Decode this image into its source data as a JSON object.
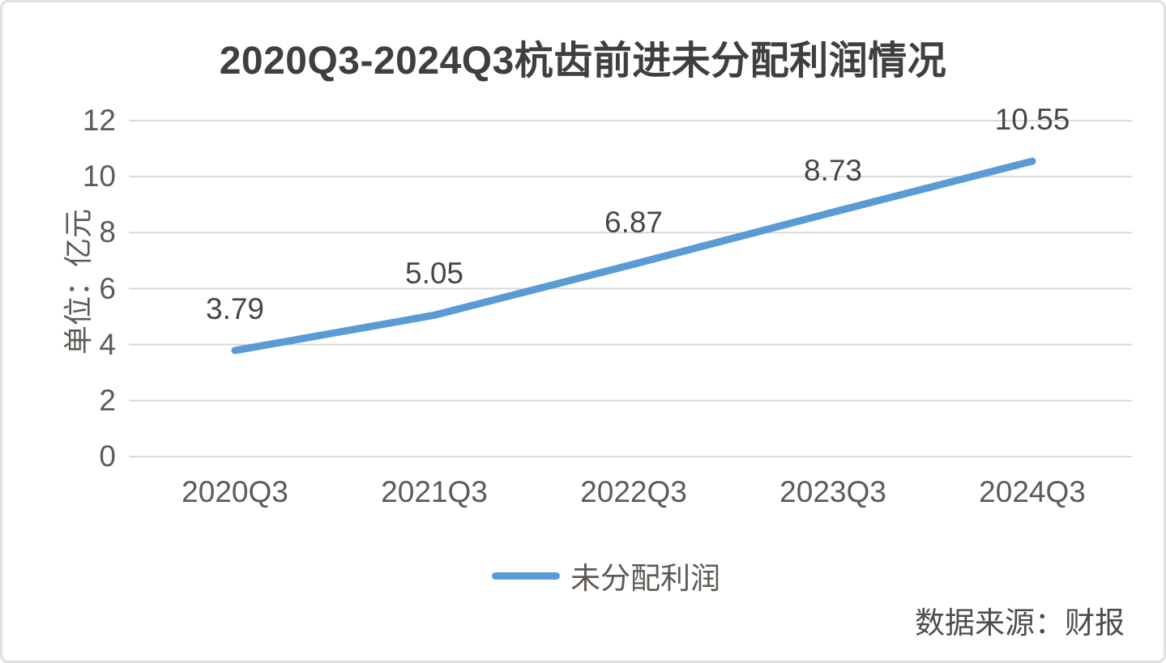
{
  "chart_data": {
    "type": "line",
    "title": "2020Q3-2024Q3杭齿前进未分配利润情况",
    "categories": [
      "2020Q3",
      "2021Q3",
      "2022Q3",
      "2023Q3",
      "2024Q3"
    ],
    "series": [
      {
        "name": "未分配利润",
        "color": "#5B9BD5",
        "values": [
          3.79,
          5.05,
          6.87,
          8.73,
          10.55
        ]
      }
    ],
    "data_labels": [
      "3.79",
      "5.05",
      "6.87",
      "8.73",
      "10.55"
    ],
    "xlabel": "",
    "ylabel": "单位：亿元",
    "ylim": [
      0,
      12
    ],
    "ytick_step": 2,
    "yticks": [
      0,
      2,
      4,
      6,
      8,
      10,
      12
    ],
    "grid": true,
    "legend_position": "bottom"
  },
  "legend": {
    "label": "未分配利润"
  },
  "source_note": "数据来源：财报",
  "colors": {
    "line": "#5B9BD5",
    "gridline": "#d9d9d9",
    "title_text": "#3f3f3f",
    "axis_text": "#5f5a55",
    "data_label_text": "#4a4540",
    "source_text": "#4d4d4d",
    "border": "#e0e0e0",
    "background": "#ffffff"
  }
}
